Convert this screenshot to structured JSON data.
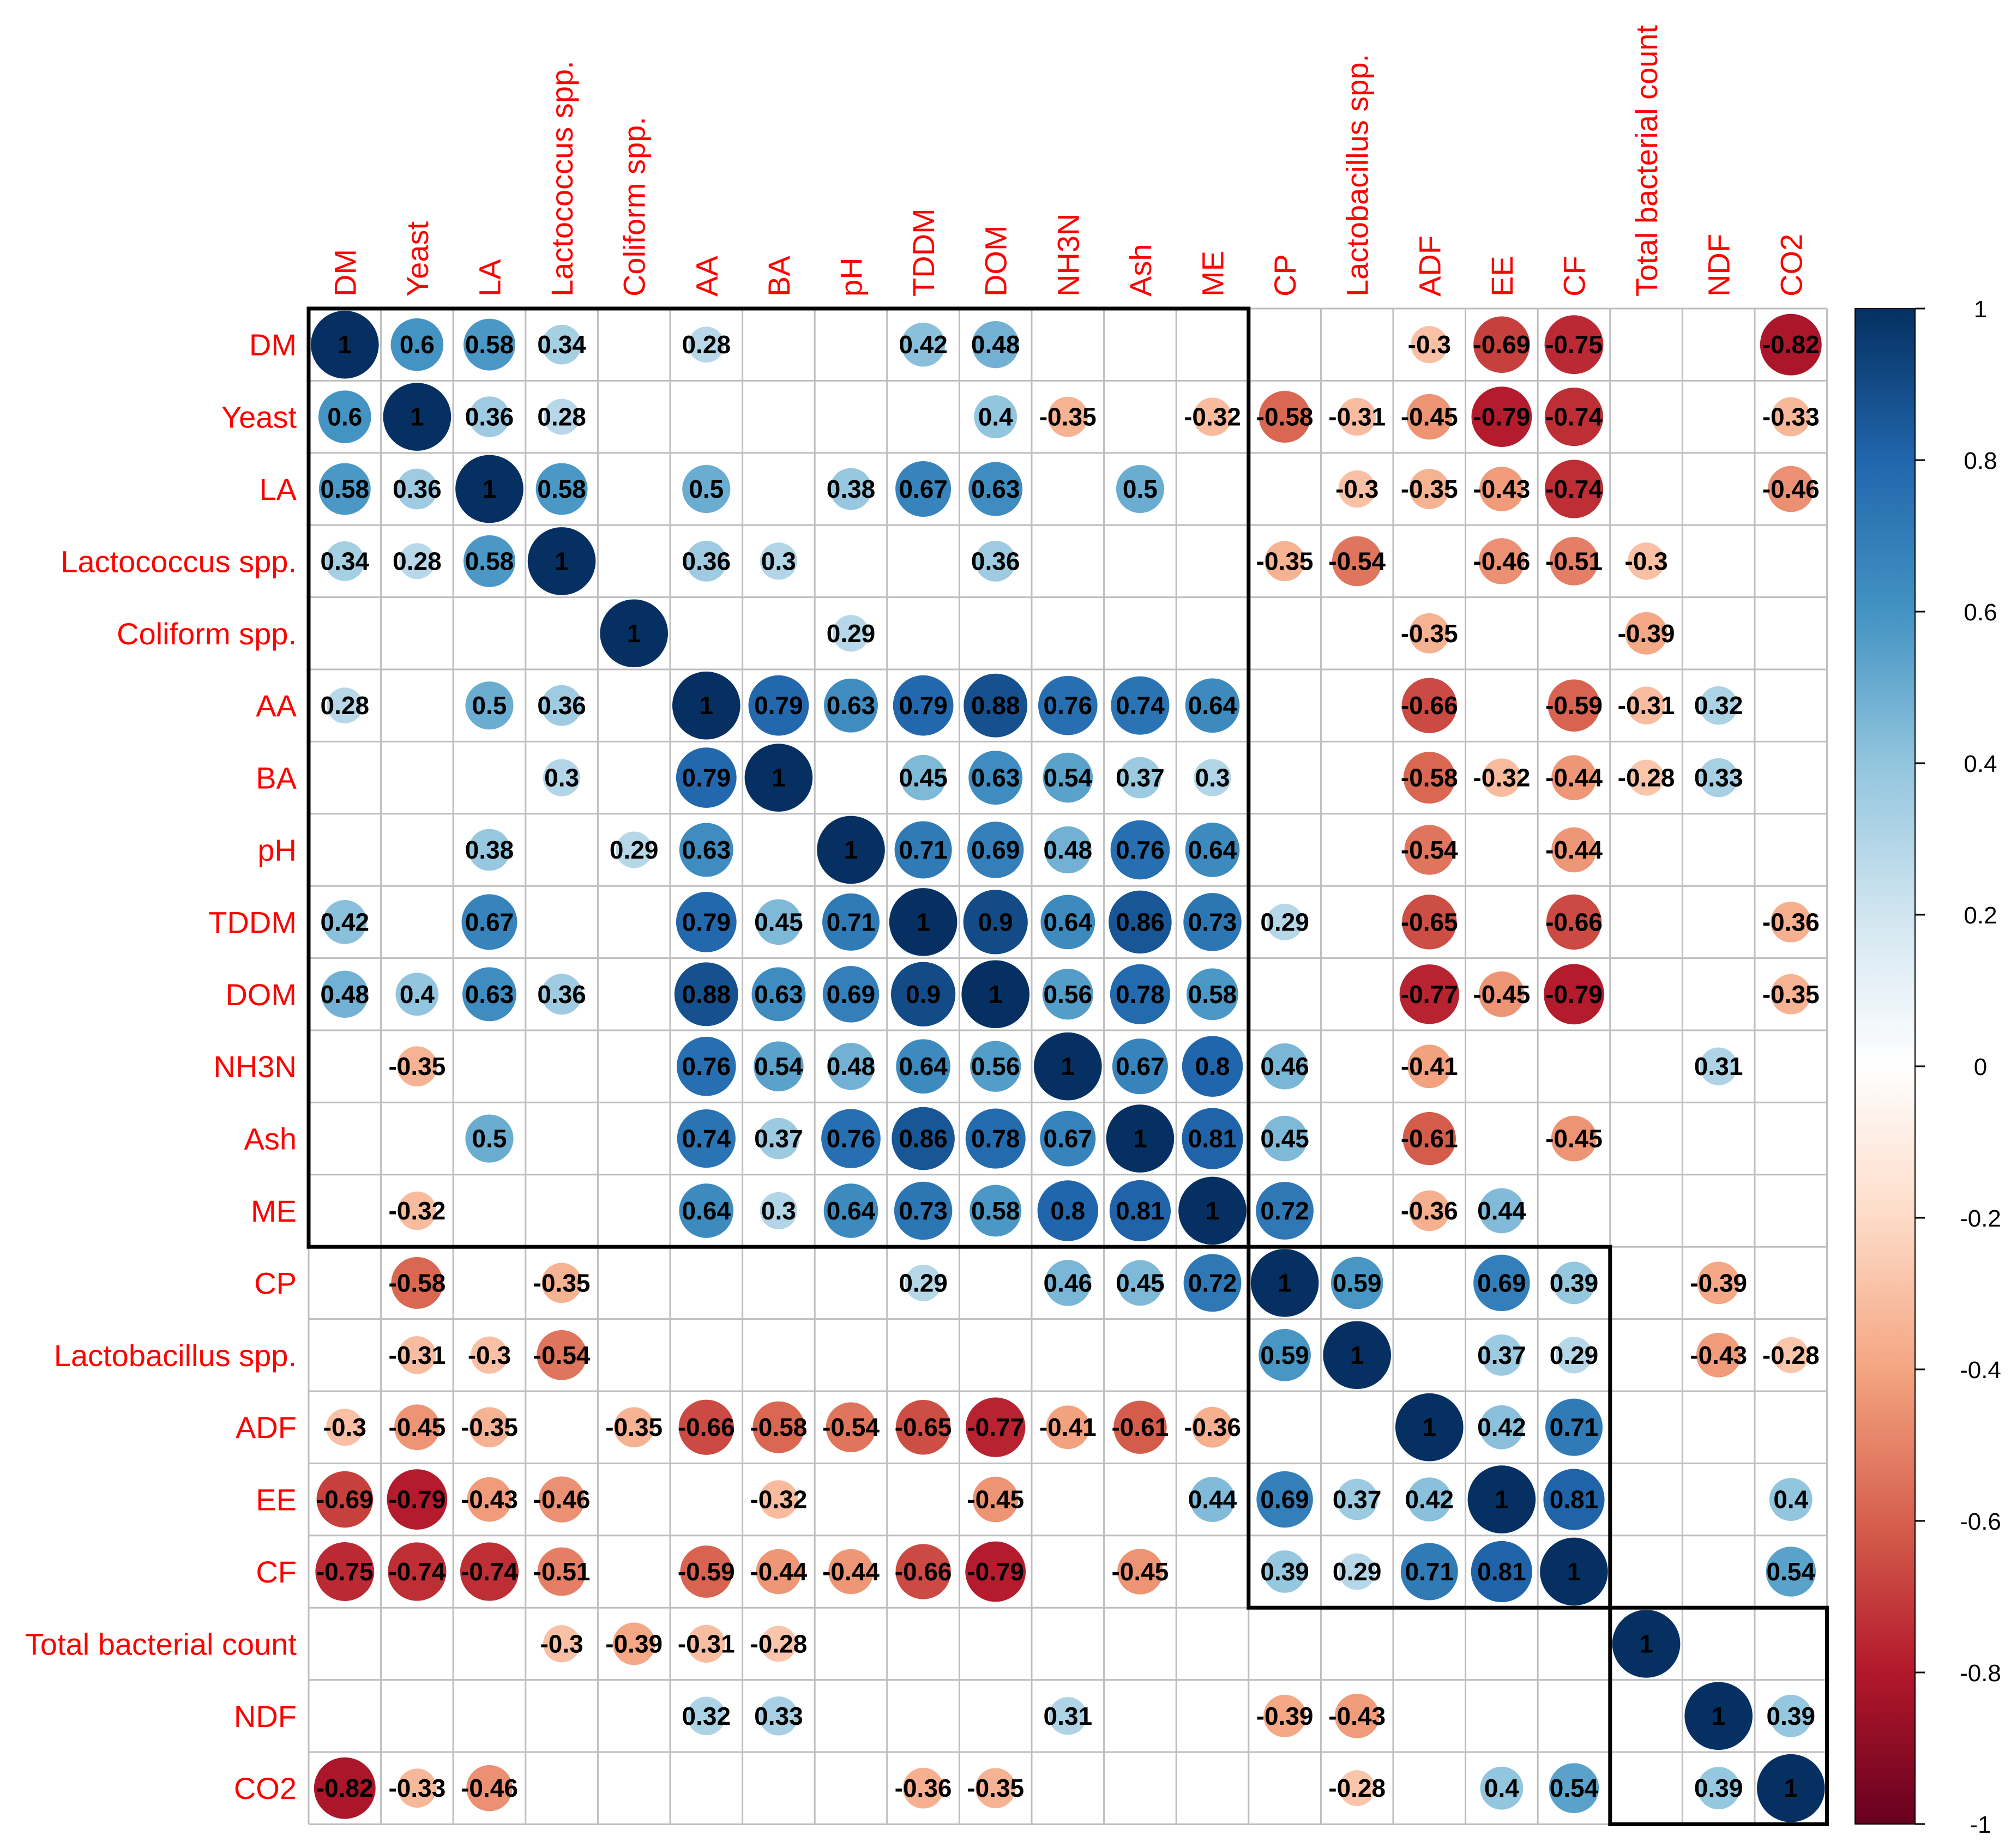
{
  "chart_data": {
    "type": "heatmap",
    "subtype": "correlation-matrix-circles",
    "title": "",
    "variables": [
      "DM",
      "Yeast",
      "LA",
      "Lactococcus spp.",
      "Coliform spp.",
      "AA",
      "BA",
      "pH",
      "TDDM",
      "DOM",
      "NH3N",
      "Ash",
      "ME",
      "CP",
      "Lactobacillus spp.",
      "ADF",
      "EE",
      "CF",
      "Total bacterial count",
      "NDF",
      "CO2"
    ],
    "cells": [
      {
        "r": 0,
        "c": 0,
        "v": 1
      },
      {
        "r": 0,
        "c": 1,
        "v": 0.6
      },
      {
        "r": 0,
        "c": 2,
        "v": 0.58
      },
      {
        "r": 0,
        "c": 3,
        "v": 0.34
      },
      {
        "r": 0,
        "c": 5,
        "v": 0.28
      },
      {
        "r": 0,
        "c": 8,
        "v": 0.42
      },
      {
        "r": 0,
        "c": 9,
        "v": 0.48
      },
      {
        "r": 0,
        "c": 15,
        "v": -0.3
      },
      {
        "r": 0,
        "c": 16,
        "v": -0.69
      },
      {
        "r": 0,
        "c": 17,
        "v": -0.75
      },
      {
        "r": 0,
        "c": 20,
        "v": -0.82
      },
      {
        "r": 1,
        "c": 0,
        "v": 0.6
      },
      {
        "r": 1,
        "c": 1,
        "v": 1
      },
      {
        "r": 1,
        "c": 2,
        "v": 0.36
      },
      {
        "r": 1,
        "c": 3,
        "v": 0.28
      },
      {
        "r": 1,
        "c": 9,
        "v": 0.4
      },
      {
        "r": 1,
        "c": 10,
        "v": -0.35
      },
      {
        "r": 1,
        "c": 12,
        "v": -0.32
      },
      {
        "r": 1,
        "c": 13,
        "v": -0.58
      },
      {
        "r": 1,
        "c": 14,
        "v": -0.31
      },
      {
        "r": 1,
        "c": 15,
        "v": -0.45
      },
      {
        "r": 1,
        "c": 16,
        "v": -0.79
      },
      {
        "r": 1,
        "c": 17,
        "v": -0.74
      },
      {
        "r": 1,
        "c": 20,
        "v": -0.33
      },
      {
        "r": 2,
        "c": 0,
        "v": 0.58
      },
      {
        "r": 2,
        "c": 1,
        "v": 0.36
      },
      {
        "r": 2,
        "c": 2,
        "v": 1
      },
      {
        "r": 2,
        "c": 3,
        "v": 0.58
      },
      {
        "r": 2,
        "c": 5,
        "v": 0.5
      },
      {
        "r": 2,
        "c": 7,
        "v": 0.38
      },
      {
        "r": 2,
        "c": 8,
        "v": 0.67
      },
      {
        "r": 2,
        "c": 9,
        "v": 0.63
      },
      {
        "r": 2,
        "c": 11,
        "v": 0.5
      },
      {
        "r": 2,
        "c": 14,
        "v": -0.3
      },
      {
        "r": 2,
        "c": 15,
        "v": -0.35
      },
      {
        "r": 2,
        "c": 16,
        "v": -0.43
      },
      {
        "r": 2,
        "c": 17,
        "v": -0.74
      },
      {
        "r": 2,
        "c": 20,
        "v": -0.46
      },
      {
        "r": 3,
        "c": 0,
        "v": 0.34
      },
      {
        "r": 3,
        "c": 1,
        "v": 0.28
      },
      {
        "r": 3,
        "c": 2,
        "v": 0.58
      },
      {
        "r": 3,
        "c": 3,
        "v": 1
      },
      {
        "r": 3,
        "c": 5,
        "v": 0.36
      },
      {
        "r": 3,
        "c": 6,
        "v": 0.3
      },
      {
        "r": 3,
        "c": 9,
        "v": 0.36
      },
      {
        "r": 3,
        "c": 13,
        "v": -0.35
      },
      {
        "r": 3,
        "c": 14,
        "v": -0.54
      },
      {
        "r": 3,
        "c": 16,
        "v": -0.46
      },
      {
        "r": 3,
        "c": 17,
        "v": -0.51
      },
      {
        "r": 3,
        "c": 18,
        "v": -0.3
      },
      {
        "r": 4,
        "c": 4,
        "v": 1
      },
      {
        "r": 4,
        "c": 7,
        "v": 0.29
      },
      {
        "r": 4,
        "c": 15,
        "v": -0.35
      },
      {
        "r": 4,
        "c": 18,
        "v": -0.39
      },
      {
        "r": 5,
        "c": 0,
        "v": 0.28
      },
      {
        "r": 5,
        "c": 2,
        "v": 0.5
      },
      {
        "r": 5,
        "c": 3,
        "v": 0.36
      },
      {
        "r": 5,
        "c": 5,
        "v": 1
      },
      {
        "r": 5,
        "c": 6,
        "v": 0.79
      },
      {
        "r": 5,
        "c": 7,
        "v": 0.63
      },
      {
        "r": 5,
        "c": 8,
        "v": 0.79
      },
      {
        "r": 5,
        "c": 9,
        "v": 0.88
      },
      {
        "r": 5,
        "c": 10,
        "v": 0.76
      },
      {
        "r": 5,
        "c": 11,
        "v": 0.74
      },
      {
        "r": 5,
        "c": 12,
        "v": 0.64
      },
      {
        "r": 5,
        "c": 15,
        "v": -0.66
      },
      {
        "r": 5,
        "c": 17,
        "v": -0.59
      },
      {
        "r": 5,
        "c": 18,
        "v": -0.31
      },
      {
        "r": 5,
        "c": 19,
        "v": 0.32
      },
      {
        "r": 6,
        "c": 3,
        "v": 0.3
      },
      {
        "r": 6,
        "c": 5,
        "v": 0.79
      },
      {
        "r": 6,
        "c": 6,
        "v": 1
      },
      {
        "r": 6,
        "c": 8,
        "v": 0.45
      },
      {
        "r": 6,
        "c": 9,
        "v": 0.63
      },
      {
        "r": 6,
        "c": 10,
        "v": 0.54
      },
      {
        "r": 6,
        "c": 11,
        "v": 0.37
      },
      {
        "r": 6,
        "c": 12,
        "v": 0.3
      },
      {
        "r": 6,
        "c": 15,
        "v": -0.58
      },
      {
        "r": 6,
        "c": 16,
        "v": -0.32
      },
      {
        "r": 6,
        "c": 17,
        "v": -0.44
      },
      {
        "r": 6,
        "c": 18,
        "v": -0.28
      },
      {
        "r": 6,
        "c": 19,
        "v": 0.33
      },
      {
        "r": 7,
        "c": 2,
        "v": 0.38
      },
      {
        "r": 7,
        "c": 4,
        "v": 0.29
      },
      {
        "r": 7,
        "c": 5,
        "v": 0.63
      },
      {
        "r": 7,
        "c": 7,
        "v": 1
      },
      {
        "r": 7,
        "c": 8,
        "v": 0.71
      },
      {
        "r": 7,
        "c": 9,
        "v": 0.69
      },
      {
        "r": 7,
        "c": 10,
        "v": 0.48
      },
      {
        "r": 7,
        "c": 11,
        "v": 0.76
      },
      {
        "r": 7,
        "c": 12,
        "v": 0.64
      },
      {
        "r": 7,
        "c": 15,
        "v": -0.54
      },
      {
        "r": 7,
        "c": 17,
        "v": -0.44
      },
      {
        "r": 8,
        "c": 0,
        "v": 0.42
      },
      {
        "r": 8,
        "c": 2,
        "v": 0.67
      },
      {
        "r": 8,
        "c": 5,
        "v": 0.79
      },
      {
        "r": 8,
        "c": 6,
        "v": 0.45
      },
      {
        "r": 8,
        "c": 7,
        "v": 0.71
      },
      {
        "r": 8,
        "c": 8,
        "v": 1
      },
      {
        "r": 8,
        "c": 9,
        "v": 0.9
      },
      {
        "r": 8,
        "c": 10,
        "v": 0.64
      },
      {
        "r": 8,
        "c": 11,
        "v": 0.86
      },
      {
        "r": 8,
        "c": 12,
        "v": 0.73
      },
      {
        "r": 8,
        "c": 13,
        "v": 0.29
      },
      {
        "r": 8,
        "c": 15,
        "v": -0.65
      },
      {
        "r": 8,
        "c": 17,
        "v": -0.66
      },
      {
        "r": 8,
        "c": 20,
        "v": -0.36
      },
      {
        "r": 9,
        "c": 0,
        "v": 0.48
      },
      {
        "r": 9,
        "c": 1,
        "v": 0.4
      },
      {
        "r": 9,
        "c": 2,
        "v": 0.63
      },
      {
        "r": 9,
        "c": 3,
        "v": 0.36
      },
      {
        "r": 9,
        "c": 5,
        "v": 0.88
      },
      {
        "r": 9,
        "c": 6,
        "v": 0.63
      },
      {
        "r": 9,
        "c": 7,
        "v": 0.69
      },
      {
        "r": 9,
        "c": 8,
        "v": 0.9
      },
      {
        "r": 9,
        "c": 9,
        "v": 1
      },
      {
        "r": 9,
        "c": 10,
        "v": 0.56
      },
      {
        "r": 9,
        "c": 11,
        "v": 0.78
      },
      {
        "r": 9,
        "c": 12,
        "v": 0.58
      },
      {
        "r": 9,
        "c": 15,
        "v": -0.77
      },
      {
        "r": 9,
        "c": 16,
        "v": -0.45
      },
      {
        "r": 9,
        "c": 17,
        "v": -0.79
      },
      {
        "r": 9,
        "c": 20,
        "v": -0.35
      },
      {
        "r": 10,
        "c": 1,
        "v": -0.35
      },
      {
        "r": 10,
        "c": 5,
        "v": 0.76
      },
      {
        "r": 10,
        "c": 6,
        "v": 0.54
      },
      {
        "r": 10,
        "c": 7,
        "v": 0.48
      },
      {
        "r": 10,
        "c": 8,
        "v": 0.64
      },
      {
        "r": 10,
        "c": 9,
        "v": 0.56
      },
      {
        "r": 10,
        "c": 10,
        "v": 1
      },
      {
        "r": 10,
        "c": 11,
        "v": 0.67
      },
      {
        "r": 10,
        "c": 12,
        "v": 0.8
      },
      {
        "r": 10,
        "c": 13,
        "v": 0.46
      },
      {
        "r": 10,
        "c": 15,
        "v": -0.41
      },
      {
        "r": 10,
        "c": 19,
        "v": 0.31
      },
      {
        "r": 11,
        "c": 2,
        "v": 0.5
      },
      {
        "r": 11,
        "c": 5,
        "v": 0.74
      },
      {
        "r": 11,
        "c": 6,
        "v": 0.37
      },
      {
        "r": 11,
        "c": 7,
        "v": 0.76
      },
      {
        "r": 11,
        "c": 8,
        "v": 0.86
      },
      {
        "r": 11,
        "c": 9,
        "v": 0.78
      },
      {
        "r": 11,
        "c": 10,
        "v": 0.67
      },
      {
        "r": 11,
        "c": 11,
        "v": 1
      },
      {
        "r": 11,
        "c": 12,
        "v": 0.81
      },
      {
        "r": 11,
        "c": 13,
        "v": 0.45
      },
      {
        "r": 11,
        "c": 15,
        "v": -0.61
      },
      {
        "r": 11,
        "c": 17,
        "v": -0.45
      },
      {
        "r": 12,
        "c": 1,
        "v": -0.32
      },
      {
        "r": 12,
        "c": 5,
        "v": 0.64
      },
      {
        "r": 12,
        "c": 6,
        "v": 0.3
      },
      {
        "r": 12,
        "c": 7,
        "v": 0.64
      },
      {
        "r": 12,
        "c": 8,
        "v": 0.73
      },
      {
        "r": 12,
        "c": 9,
        "v": 0.58
      },
      {
        "r": 12,
        "c": 10,
        "v": 0.8
      },
      {
        "r": 12,
        "c": 11,
        "v": 0.81
      },
      {
        "r": 12,
        "c": 12,
        "v": 1
      },
      {
        "r": 12,
        "c": 13,
        "v": 0.72
      },
      {
        "r": 12,
        "c": 15,
        "v": -0.36
      },
      {
        "r": 12,
        "c": 16,
        "v": 0.44
      },
      {
        "r": 13,
        "c": 1,
        "v": -0.58
      },
      {
        "r": 13,
        "c": 3,
        "v": -0.35
      },
      {
        "r": 13,
        "c": 8,
        "v": 0.29
      },
      {
        "r": 13,
        "c": 10,
        "v": 0.46
      },
      {
        "r": 13,
        "c": 11,
        "v": 0.45
      },
      {
        "r": 13,
        "c": 12,
        "v": 0.72
      },
      {
        "r": 13,
        "c": 13,
        "v": 1
      },
      {
        "r": 13,
        "c": 14,
        "v": 0.59
      },
      {
        "r": 13,
        "c": 16,
        "v": 0.69
      },
      {
        "r": 13,
        "c": 17,
        "v": 0.39
      },
      {
        "r": 13,
        "c": 19,
        "v": -0.39
      },
      {
        "r": 14,
        "c": 1,
        "v": -0.31
      },
      {
        "r": 14,
        "c": 2,
        "v": -0.3
      },
      {
        "r": 14,
        "c": 3,
        "v": -0.54
      },
      {
        "r": 14,
        "c": 13,
        "v": 0.59
      },
      {
        "r": 14,
        "c": 14,
        "v": 1
      },
      {
        "r": 14,
        "c": 16,
        "v": 0.37
      },
      {
        "r": 14,
        "c": 17,
        "v": 0.29
      },
      {
        "r": 14,
        "c": 19,
        "v": -0.43
      },
      {
        "r": 14,
        "c": 20,
        "v": -0.28
      },
      {
        "r": 15,
        "c": 0,
        "v": -0.3
      },
      {
        "r": 15,
        "c": 1,
        "v": -0.45
      },
      {
        "r": 15,
        "c": 2,
        "v": -0.35
      },
      {
        "r": 15,
        "c": 4,
        "v": -0.35
      },
      {
        "r": 15,
        "c": 5,
        "v": -0.66
      },
      {
        "r": 15,
        "c": 6,
        "v": -0.58
      },
      {
        "r": 15,
        "c": 7,
        "v": -0.54
      },
      {
        "r": 15,
        "c": 8,
        "v": -0.65
      },
      {
        "r": 15,
        "c": 9,
        "v": -0.77
      },
      {
        "r": 15,
        "c": 10,
        "v": -0.41
      },
      {
        "r": 15,
        "c": 11,
        "v": -0.61
      },
      {
        "r": 15,
        "c": 12,
        "v": -0.36
      },
      {
        "r": 15,
        "c": 15,
        "v": 1
      },
      {
        "r": 15,
        "c": 16,
        "v": 0.42
      },
      {
        "r": 15,
        "c": 17,
        "v": 0.71
      },
      {
        "r": 16,
        "c": 0,
        "v": -0.69
      },
      {
        "r": 16,
        "c": 1,
        "v": -0.79
      },
      {
        "r": 16,
        "c": 2,
        "v": -0.43
      },
      {
        "r": 16,
        "c": 3,
        "v": -0.46
      },
      {
        "r": 16,
        "c": 6,
        "v": -0.32
      },
      {
        "r": 16,
        "c": 9,
        "v": -0.45
      },
      {
        "r": 16,
        "c": 12,
        "v": 0.44
      },
      {
        "r": 16,
        "c": 13,
        "v": 0.69
      },
      {
        "r": 16,
        "c": 14,
        "v": 0.37
      },
      {
        "r": 16,
        "c": 15,
        "v": 0.42
      },
      {
        "r": 16,
        "c": 16,
        "v": 1
      },
      {
        "r": 16,
        "c": 17,
        "v": 0.81
      },
      {
        "r": 16,
        "c": 20,
        "v": 0.4
      },
      {
        "r": 17,
        "c": 0,
        "v": -0.75
      },
      {
        "r": 17,
        "c": 1,
        "v": -0.74
      },
      {
        "r": 17,
        "c": 2,
        "v": -0.74
      },
      {
        "r": 17,
        "c": 3,
        "v": -0.51
      },
      {
        "r": 17,
        "c": 5,
        "v": -0.59
      },
      {
        "r": 17,
        "c": 6,
        "v": -0.44
      },
      {
        "r": 17,
        "c": 7,
        "v": -0.44
      },
      {
        "r": 17,
        "c": 8,
        "v": -0.66
      },
      {
        "r": 17,
        "c": 9,
        "v": -0.79
      },
      {
        "r": 17,
        "c": 11,
        "v": -0.45
      },
      {
        "r": 17,
        "c": 13,
        "v": 0.39
      },
      {
        "r": 17,
        "c": 14,
        "v": 0.29
      },
      {
        "r": 17,
        "c": 15,
        "v": 0.71
      },
      {
        "r": 17,
        "c": 16,
        "v": 0.81
      },
      {
        "r": 17,
        "c": 17,
        "v": 1
      },
      {
        "r": 17,
        "c": 20,
        "v": 0.54
      },
      {
        "r": 18,
        "c": 3,
        "v": -0.3
      },
      {
        "r": 18,
        "c": 4,
        "v": -0.39
      },
      {
        "r": 18,
        "c": 5,
        "v": -0.31
      },
      {
        "r": 18,
        "c": 6,
        "v": -0.28
      },
      {
        "r": 18,
        "c": 18,
        "v": 1
      },
      {
        "r": 19,
        "c": 5,
        "v": 0.32
      },
      {
        "r": 19,
        "c": 6,
        "v": 0.33
      },
      {
        "r": 19,
        "c": 10,
        "v": 0.31
      },
      {
        "r": 19,
        "c": 13,
        "v": -0.39
      },
      {
        "r": 19,
        "c": 14,
        "v": -0.43
      },
      {
        "r": 19,
        "c": 19,
        "v": 1
      },
      {
        "r": 19,
        "c": 20,
        "v": 0.39
      },
      {
        "r": 20,
        "c": 0,
        "v": -0.82
      },
      {
        "r": 20,
        "c": 1,
        "v": -0.33
      },
      {
        "r": 20,
        "c": 2,
        "v": -0.46
      },
      {
        "r": 20,
        "c": 8,
        "v": -0.36
      },
      {
        "r": 20,
        "c": 9,
        "v": -0.35
      },
      {
        "r": 20,
        "c": 14,
        "v": -0.28
      },
      {
        "r": 20,
        "c": 16,
        "v": 0.4
      },
      {
        "r": 20,
        "c": 17,
        "v": 0.54
      },
      {
        "r": 20,
        "c": 19,
        "v": 0.39
      },
      {
        "r": 20,
        "c": 20,
        "v": 1
      }
    ],
    "clusters": [
      {
        "start": 0,
        "end": 12
      },
      {
        "start": 13,
        "end": 17
      },
      {
        "start": 18,
        "end": 20
      }
    ],
    "colorbar": {
      "range": [
        -1,
        1
      ],
      "ticks": [
        "1",
        "0.8",
        "0.6",
        "0.4",
        "0.2",
        "0",
        "-0.2",
        "-0.4",
        "-0.6",
        "-0.8",
        "-1"
      ],
      "tick_values": [
        1,
        0.8,
        0.6,
        0.4,
        0.2,
        0,
        -0.2,
        -0.4,
        -0.6,
        -0.8,
        -1
      ],
      "stops": [
        {
          "v": -1,
          "color": "#67001F"
        },
        {
          "v": -0.8,
          "color": "#B2182B"
        },
        {
          "v": -0.6,
          "color": "#D6604D"
        },
        {
          "v": -0.4,
          "color": "#F4A582"
        },
        {
          "v": -0.2,
          "color": "#FDDBC7"
        },
        {
          "v": 0,
          "color": "#FFFFFF"
        },
        {
          "v": 0.2,
          "color": "#D1E5F0"
        },
        {
          "v": 0.4,
          "color": "#92C5DE"
        },
        {
          "v": 0.6,
          "color": "#4393C3"
        },
        {
          "v": 0.8,
          "color": "#2166AC"
        },
        {
          "v": 1,
          "color": "#053061"
        }
      ]
    },
    "label_color": "#FF0000",
    "grid_color": "#BEBEBE",
    "value_label_color": "#000000"
  }
}
